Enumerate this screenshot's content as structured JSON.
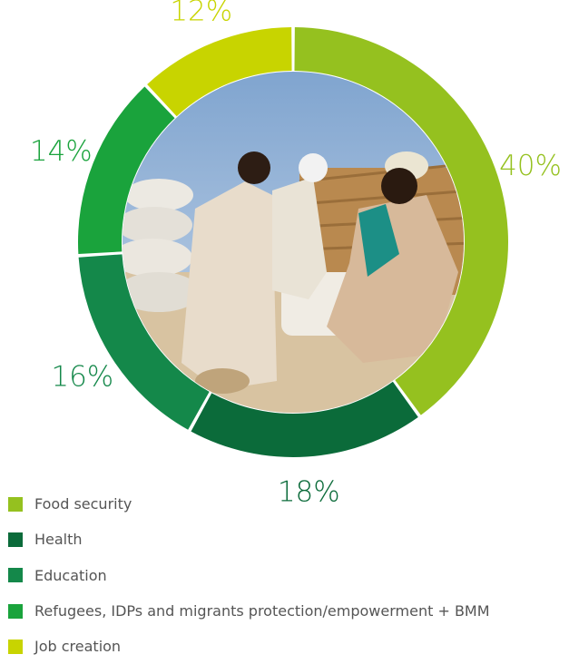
{
  "chart_data": {
    "type": "pie",
    "categories": [
      "Food security",
      "Health",
      "Education",
      "Refugees, IDPs and migrants protection/empowerment + BMM",
      "Job creation"
    ],
    "values": [
      40,
      18,
      16,
      14,
      12
    ],
    "value_labels": [
      "40%",
      "18%",
      "16%",
      "14%",
      "12%"
    ],
    "colors": [
      "#95c11f",
      "#0b6b3a",
      "#14884a",
      "#1aa33c",
      "#c8d400"
    ],
    "label_colors": [
      "#95c11f",
      "#0b6b3a",
      "#14884a",
      "#1aa33c",
      "#c8d400"
    ],
    "legend_position": "bottom-left",
    "start_angle_deg": 0,
    "center_image": "photo of food distribution sacks"
  }
}
